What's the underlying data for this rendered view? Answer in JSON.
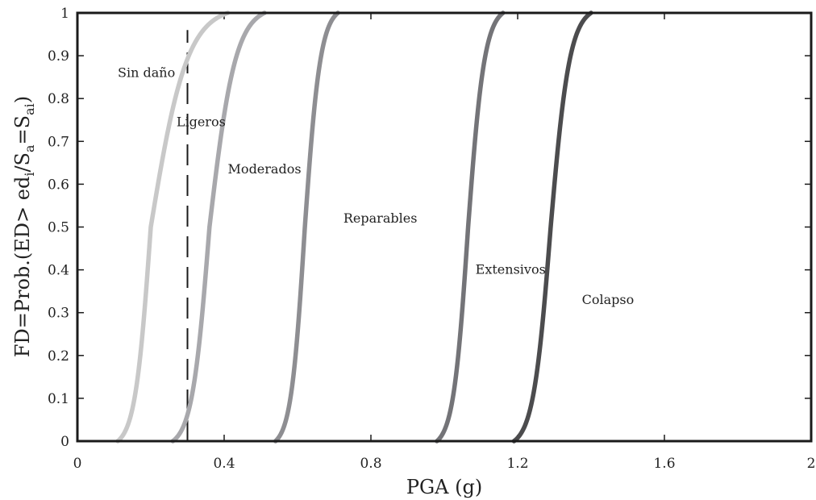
{
  "chart_data": {
    "type": "line",
    "xlabel": "PGA (g)",
    "ylabel_parts": [
      "FD=Prob.(ED> ed",
      "i",
      "/S",
      "a",
      "=S",
      "ai",
      ")"
    ],
    "xlim": [
      0,
      2
    ],
    "ylim": [
      0,
      1
    ],
    "x_ticks": [
      0,
      0.4,
      0.8,
      1.2,
      1.6,
      2
    ],
    "x_tick_labels": [
      "0",
      "0.4",
      "0.8",
      "1.2",
      "1.6",
      "2"
    ],
    "y_ticks": [
      0,
      0.1,
      0.2,
      0.3,
      0.4,
      0.5,
      0.6,
      0.7,
      0.8,
      0.9,
      1
    ],
    "y_tick_labels": [
      "0",
      "0.1",
      "0.2",
      "0.3",
      "0.4",
      "0.5",
      "0.6",
      "0.7",
      "0.8",
      "0.9",
      "1"
    ],
    "grid": false,
    "vertical_reference_line": {
      "x": 0.3,
      "style": "dashed"
    },
    "series": [
      {
        "x_start": 0.11,
        "x_end": 0.41,
        "median": 0.2,
        "color": "#c8c8c8"
      },
      {
        "x_start": 0.26,
        "x_end": 0.51,
        "median": 0.36,
        "color": "#a8a8ac"
      },
      {
        "x_start": 0.54,
        "x_end": 0.71,
        "median": 0.62,
        "color": "#8e8e92"
      },
      {
        "x_start": 0.98,
        "x_end": 1.16,
        "median": 1.065,
        "color": "#747478"
      },
      {
        "x_start": 1.19,
        "x_end": 1.4,
        "median": 1.29,
        "color": "#4c4c4e"
      }
    ],
    "region_labels": [
      {
        "text": "Sin daño",
        "x": 0.11,
        "y": 0.86
      },
      {
        "text": "Ligeros",
        "x": 0.27,
        "y": 0.745
      },
      {
        "text": "Moderados",
        "x": 0.41,
        "y": 0.635
      },
      {
        "text": "Reparables",
        "x": 0.725,
        "y": 0.52
      },
      {
        "text": "Extensivos",
        "x": 1.085,
        "y": 0.4
      },
      {
        "text": "Colapso",
        "x": 1.375,
        "y": 0.33
      }
    ]
  }
}
